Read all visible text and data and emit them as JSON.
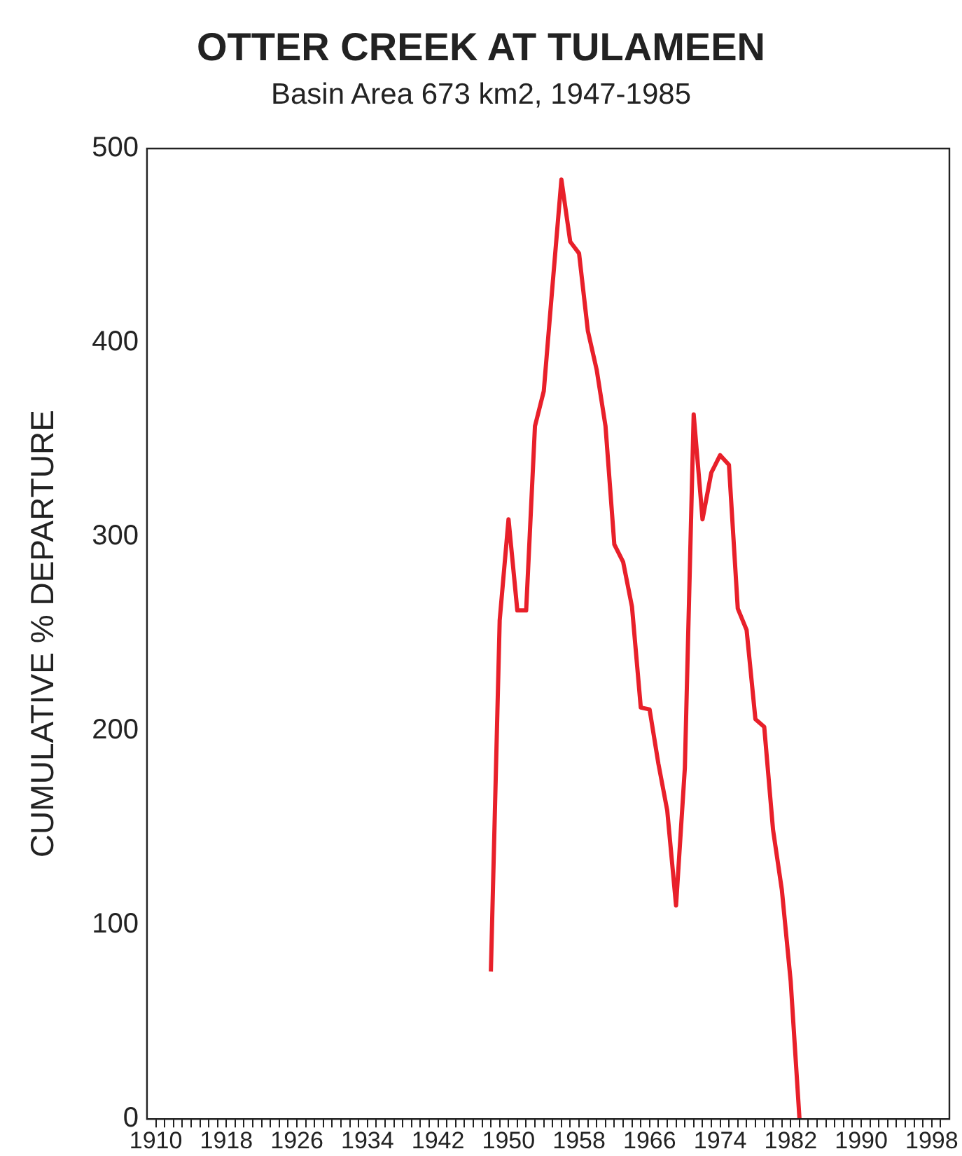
{
  "chart_data": {
    "type": "line",
    "title": "OTTER CREEK AT TULAMEEN",
    "subtitle": "Basin Area 673 km2, 1947-1985",
    "ylabel": "CUMULATIVE % DEPARTURE",
    "x": [
      1948,
      1949,
      1950,
      1951,
      1952,
      1953,
      1954,
      1955,
      1956,
      1957,
      1958,
      1959,
      1960,
      1961,
      1962,
      1963,
      1964,
      1965,
      1966,
      1967,
      1968,
      1969,
      1970,
      1971,
      1972,
      1973,
      1974,
      1975,
      1976,
      1977,
      1978,
      1979,
      1980,
      1981,
      1982,
      1983
    ],
    "series": [
      {
        "color": "#e8202a",
        "values": [
          76,
          257,
          309,
          262,
          262,
          357,
          375,
          430,
          484,
          452,
          446,
          406,
          386,
          357,
          296,
          287,
          264,
          212,
          211,
          183,
          159,
          110,
          181,
          363,
          309,
          333,
          342,
          337,
          263,
          252,
          206,
          202,
          149,
          118,
          71,
          0
        ]
      }
    ],
    "xlim": [
      1909,
      2000
    ],
    "xticks": [
      1910,
      {
        "value": 1911,
        "label": null
      },
      {
        "value": 1912,
        "label": null
      },
      {
        "value": 1913,
        "label": null
      },
      {
        "value": 1914,
        "label": null
      },
      {
        "value": 1915,
        "label": null
      },
      {
        "value": 1916,
        "label": null
      },
      {
        "value": 1917,
        "label": null
      },
      1918,
      {
        "value": 1919,
        "label": null
      },
      {
        "value": 1920,
        "label": null
      },
      {
        "value": 1921,
        "label": null
      },
      {
        "value": 1922,
        "label": null
      },
      {
        "value": 1923,
        "label": null
      },
      {
        "value": 1924,
        "label": null
      },
      {
        "value": 1925,
        "label": null
      },
      1926,
      {
        "value": 1927,
        "label": null
      },
      {
        "value": 1928,
        "label": null
      },
      {
        "value": 1929,
        "label": null
      },
      {
        "value": 1930,
        "label": null
      },
      {
        "value": 1931,
        "label": null
      },
      {
        "value": 1932,
        "label": null
      },
      {
        "value": 1933,
        "label": null
      },
      1934,
      {
        "value": 1935,
        "label": null
      },
      {
        "value": 1936,
        "label": null
      },
      {
        "value": 1937,
        "label": null
      },
      {
        "value": 1938,
        "label": null
      },
      {
        "value": 1939,
        "label": null
      },
      {
        "value": 1940,
        "label": null
      },
      {
        "value": 1941,
        "label": null
      },
      1942,
      {
        "value": 1943,
        "label": null
      },
      {
        "value": 1944,
        "label": null
      },
      {
        "value": 1945,
        "label": null
      },
      {
        "value": 1946,
        "label": null
      },
      {
        "value": 1947,
        "label": null
      },
      {
        "value": 1948,
        "label": null
      },
      {
        "value": 1949,
        "label": null
      },
      1950,
      {
        "value": 1951,
        "label": null
      },
      {
        "value": 1952,
        "label": null
      },
      {
        "value": 1953,
        "label": null
      },
      {
        "value": 1954,
        "label": null
      },
      {
        "value": 1955,
        "label": null
      },
      {
        "value": 1956,
        "label": null
      },
      {
        "value": 1957,
        "label": null
      },
      1958,
      {
        "value": 1959,
        "label": null
      },
      {
        "value": 1960,
        "label": null
      },
      {
        "value": 1961,
        "label": null
      },
      {
        "value": 1962,
        "label": null
      },
      {
        "value": 1963,
        "label": null
      },
      {
        "value": 1964,
        "label": null
      },
      {
        "value": 1965,
        "label": null
      },
      1966,
      {
        "value": 1967,
        "label": null
      },
      {
        "value": 1968,
        "label": null
      },
      {
        "value": 1969,
        "label": null
      },
      {
        "value": 1970,
        "label": null
      },
      {
        "value": 1971,
        "label": null
      },
      {
        "value": 1972,
        "label": null
      },
      {
        "value": 1973,
        "label": null
      },
      1974,
      {
        "value": 1975,
        "label": null
      },
      {
        "value": 1976,
        "label": null
      },
      {
        "value": 1977,
        "label": null
      },
      {
        "value": 1978,
        "label": null
      },
      {
        "value": 1979,
        "label": null
      },
      {
        "value": 1980,
        "label": null
      },
      {
        "value": 1981,
        "label": null
      },
      1982,
      {
        "value": 1983,
        "label": null
      },
      {
        "value": 1984,
        "label": null
      },
      {
        "value": 1985,
        "label": null
      },
      {
        "value": 1986,
        "label": null
      },
      {
        "value": 1987,
        "label": null
      },
      {
        "value": 1988,
        "label": null
      },
      {
        "value": 1989,
        "label": null
      },
      1990,
      {
        "value": 1991,
        "label": null
      },
      {
        "value": 1992,
        "label": null
      },
      {
        "value": 1993,
        "label": null
      },
      {
        "value": 1994,
        "label": null
      },
      {
        "value": 1995,
        "label": null
      },
      {
        "value": 1996,
        "label": null
      },
      {
        "value": 1997,
        "label": null
      },
      1998,
      {
        "value": 1999,
        "label": null
      }
    ],
    "ylim": [
      0,
      500
    ],
    "yticks": [
      0,
      100,
      200,
      300,
      400,
      500
    ],
    "grid": false,
    "legend": false,
    "marker": "none",
    "line_style": "solid"
  }
}
